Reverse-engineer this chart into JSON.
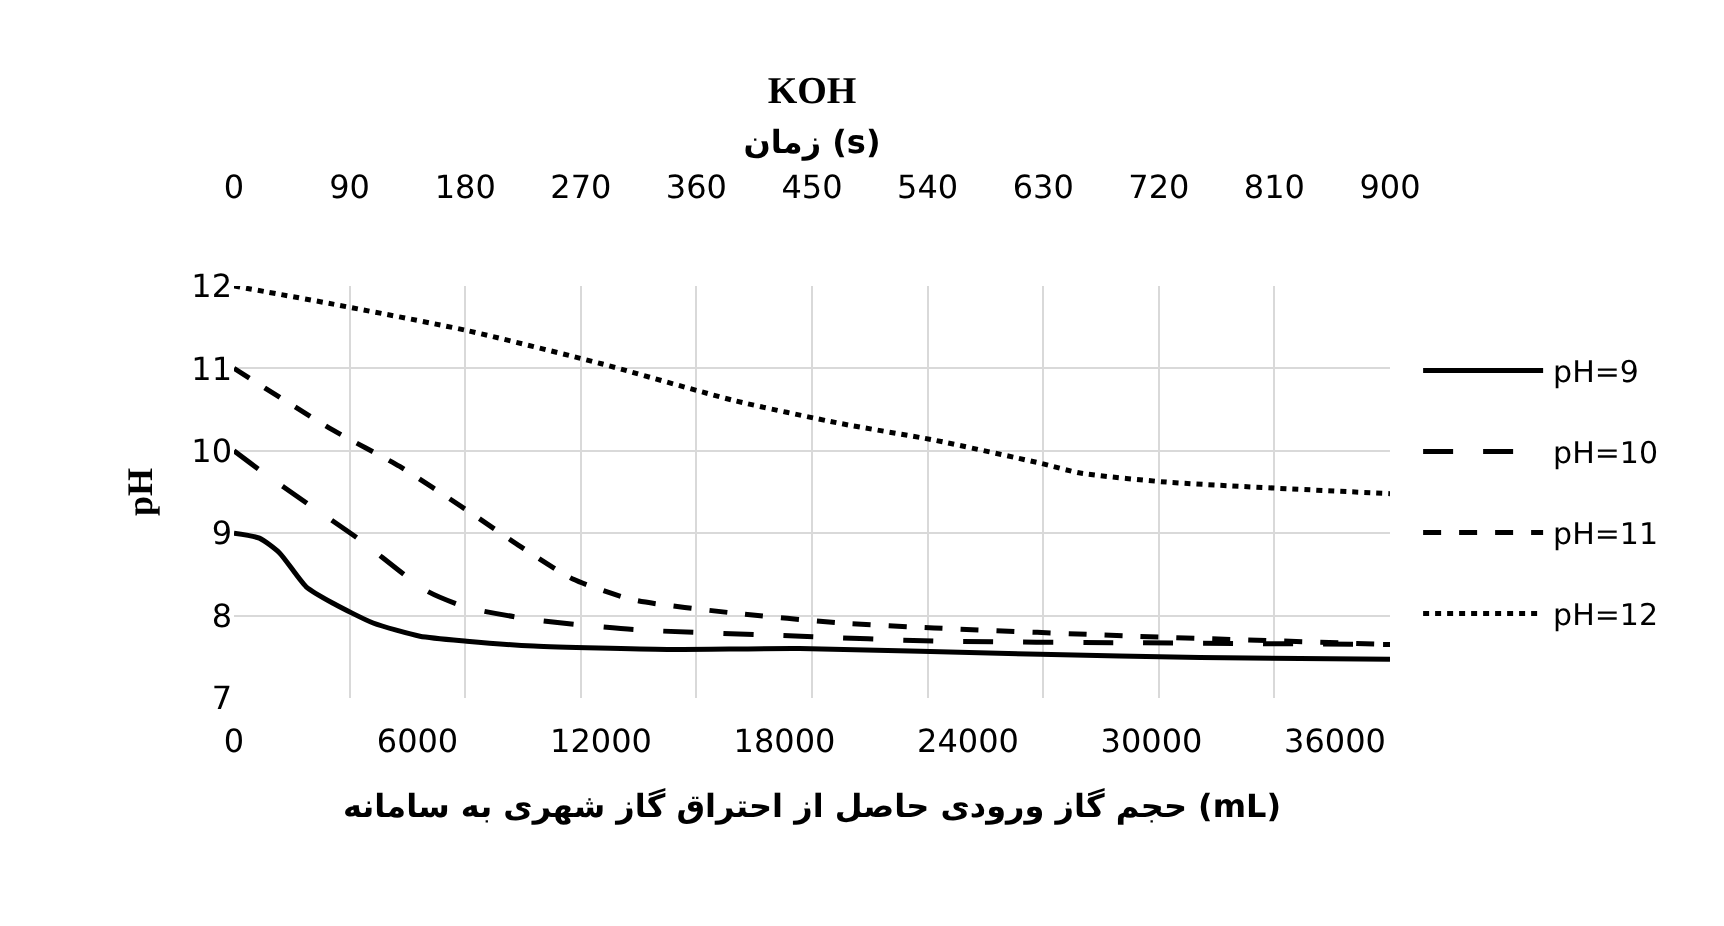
{
  "chart_data": {
    "type": "line",
    "title": "KOH",
    "x2label": "زمان (s)",
    "xlabel": "حجم گاز ورودی حاصل از احتراق گاز شهری به سامانه (mL)",
    "ylabel": "pH",
    "xlim": [
      0,
      37800
    ],
    "xticks": [
      0,
      6000,
      12000,
      18000,
      24000,
      30000,
      36000
    ],
    "x2lim": [
      0,
      900
    ],
    "x2ticks": [
      0,
      90,
      180,
      270,
      360,
      450,
      540,
      630,
      720,
      810,
      900
    ],
    "ylim": [
      7,
      12
    ],
    "yticks": [
      7,
      8,
      9,
      10,
      11,
      12
    ],
    "grid": true,
    "legend": "right",
    "marker": "none",
    "series": [
      {
        "name": "pH=9",
        "color": "#000000",
        "line_style": "solid",
        "x": [
          0,
          830,
          1490,
          2360,
          3240,
          4550,
          6080,
          7610,
          9800,
          14170,
          18500,
          26360,
          31590,
          37800
        ],
        "values": [
          9.0,
          8.94,
          8.76,
          8.35,
          8.15,
          7.91,
          7.75,
          7.69,
          7.63,
          7.59,
          7.6,
          7.53,
          7.49,
          7.47
        ]
      },
      {
        "name": "pH=10",
        "color": "#000000",
        "line_style": "dashed",
        "x": [
          0,
          830,
          2360,
          4110,
          6300,
          7610,
          9800,
          13070,
          18540,
          22890,
          29430,
          37800
        ],
        "values": [
          10.0,
          9.77,
          9.37,
          8.92,
          8.3,
          8.1,
          7.95,
          7.83,
          7.75,
          7.69,
          7.67,
          7.65
        ]
      },
      {
        "name": "pH=11",
        "color": "#000000",
        "line_style": "dashed",
        "x": [
          0,
          3240,
          5420,
          7610,
          9360,
          11100,
          13070,
          16350,
          19850,
          22890,
          29430,
          37800
        ],
        "values": [
          11.0,
          10.25,
          9.81,
          9.28,
          8.84,
          8.44,
          8.19,
          8.03,
          7.91,
          7.85,
          7.75,
          7.65
        ]
      },
      {
        "name": "pH=12",
        "color": "#000000",
        "line_style": "dotted",
        "x": [
          0,
          3240,
          7610,
          11980,
          16350,
          19850,
          22890,
          26360,
          27670,
          30500,
          37800
        ],
        "values": [
          12.0,
          11.78,
          11.46,
          11.06,
          10.61,
          10.33,
          10.13,
          9.85,
          9.73,
          9.62,
          9.48
        ]
      }
    ]
  }
}
